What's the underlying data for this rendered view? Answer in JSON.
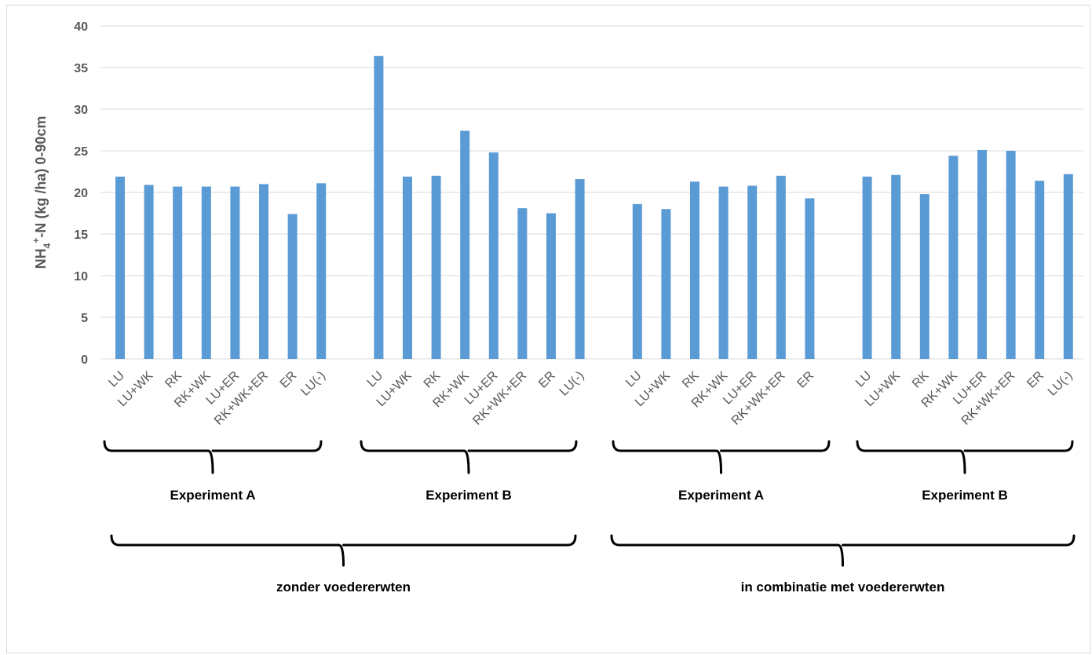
{
  "chart_data": {
    "type": "bar",
    "ylabel": "NH4+-N (kg /ha) 0-90cm",
    "ylabel_parts": {
      "main": "NH",
      "sub": "4",
      "sup": "+",
      "rest": "-N (kg /ha) 0-90cm"
    },
    "ylim": [
      0,
      40
    ],
    "yticks": [
      0,
      5,
      10,
      15,
      20,
      25,
      30,
      35,
      40
    ],
    "grid": true,
    "bar_color": "#5b9bd5",
    "groups": [
      {
        "label": "Experiment A",
        "categories": [
          "LU",
          "LU+WK",
          "RK",
          "RK+WK",
          "LU+ER",
          "RK+WK+ER",
          "ER",
          "LU(-)"
        ],
        "values": [
          21.9,
          20.9,
          20.7,
          20.7,
          20.7,
          21.0,
          17.4,
          21.1
        ]
      },
      {
        "label": "Experiment B",
        "categories": [
          "LU",
          "LU+WK",
          "RK",
          "RK+WK",
          "LU+ER",
          "RK+WK+ER",
          "ER",
          "LU(-)"
        ],
        "values": [
          36.4,
          21.9,
          22.0,
          27.4,
          24.8,
          18.1,
          17.5,
          21.6
        ]
      },
      {
        "label": "Experiment A",
        "categories": [
          "LU",
          "LU+WK",
          "RK",
          "RK+WK",
          "LU+ER",
          "RK+WK+ER",
          "ER"
        ],
        "values": [
          18.6,
          18.0,
          21.3,
          20.7,
          20.8,
          22.0,
          19.3
        ]
      },
      {
        "label": "Experiment B",
        "categories": [
          "LU",
          "LU+WK",
          "RK",
          "RK+WK",
          "LU+ER",
          "RK+WK+ER",
          "ER",
          "LU(-)"
        ],
        "values": [
          21.9,
          22.1,
          19.8,
          24.4,
          25.1,
          25.0,
          21.4,
          22.2
        ]
      }
    ],
    "supergroups": [
      {
        "label": "zonder voedererwten"
      },
      {
        "label": "in combinatie met voedererwten"
      }
    ]
  }
}
